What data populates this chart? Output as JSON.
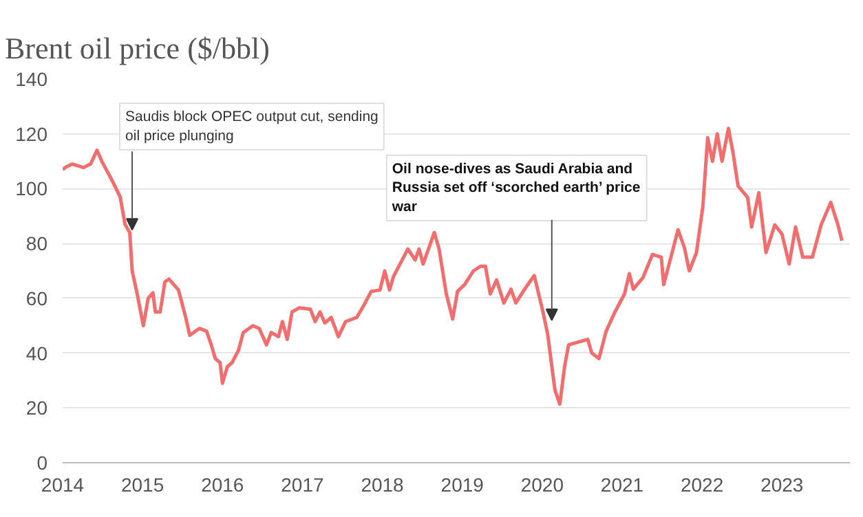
{
  "chart_data": {
    "type": "line",
    "title": "Brent oil price ($/bbl)",
    "x": [
      2014.0,
      2014.05,
      2014.12,
      2014.26,
      2014.35,
      2014.43,
      2014.49,
      2014.61,
      2014.72,
      2014.78,
      2014.84,
      2014.87,
      2014.93,
      2015.01,
      2015.07,
      2015.13,
      2015.16,
      2015.22,
      2015.28,
      2015.33,
      2015.45,
      2015.54,
      2015.59,
      2015.71,
      2015.8,
      2015.86,
      2015.91,
      2015.97,
      2016.0,
      2016.06,
      2016.12,
      2016.2,
      2016.26,
      2016.38,
      2016.46,
      2016.55,
      2016.61,
      2016.7,
      2016.75,
      2016.81,
      2016.87,
      2016.96,
      2017.1,
      2017.16,
      2017.22,
      2017.28,
      2017.36,
      2017.45,
      2017.54,
      2017.68,
      2017.77,
      2017.86,
      2017.97,
      2018.03,
      2018.09,
      2018.14,
      2018.23,
      2018.32,
      2018.41,
      2018.46,
      2018.51,
      2018.59,
      2018.65,
      2018.71,
      2018.8,
      2018.88,
      2018.94,
      2019.03,
      2019.14,
      2019.23,
      2019.29,
      2019.35,
      2019.43,
      2019.52,
      2019.61,
      2019.67,
      2019.78,
      2019.9,
      2020.01,
      2020.07,
      2020.13,
      2020.16,
      2020.22,
      2020.28,
      2020.33,
      2020.45,
      2020.57,
      2020.62,
      2020.71,
      2020.8,
      2020.91,
      2021.03,
      2021.09,
      2021.14,
      2021.26,
      2021.38,
      2021.49,
      2021.52,
      2021.61,
      2021.7,
      2021.78,
      2021.84,
      2021.93,
      2022.01,
      2022.07,
      2022.13,
      2022.19,
      2022.25,
      2022.33,
      2022.39,
      2022.45,
      2022.57,
      2022.62,
      2022.71,
      2022.8,
      2022.91,
      2023.0,
      2023.09,
      2023.17,
      2023.26,
      2023.38,
      2023.49,
      2023.61,
      2023.7,
      2023.75
    ],
    "series": [
      {
        "color": "#f26d6d",
        "values": [
          107,
          108,
          109,
          107.7,
          109,
          114,
          110,
          103.5,
          97,
          87,
          84,
          70,
          62,
          50,
          60,
          62,
          55,
          55,
          66,
          67,
          63,
          53,
          46.5,
          49,
          48,
          43,
          38,
          36.5,
          29,
          35,
          36.5,
          41,
          47.5,
          50,
          49,
          43,
          47.5,
          46,
          51.5,
          45,
          55,
          56.5,
          56,
          51.5,
          55,
          51,
          53,
          46,
          51.5,
          53,
          57.5,
          62.5,
          63,
          70,
          63,
          68,
          73,
          78,
          74,
          78,
          72.5,
          79,
          84,
          78,
          61.6,
          52.4,
          62.5,
          65,
          70,
          71.7,
          71.7,
          61.6,
          66.7,
          58.3,
          63.3,
          58.3,
          63.3,
          68.3,
          55,
          46.6,
          33,
          26.5,
          21.4,
          35,
          43,
          44,
          45,
          40,
          38,
          48,
          55,
          61.6,
          69,
          63.3,
          67.5,
          76,
          75,
          65,
          75,
          85,
          78.4,
          70,
          76.7,
          93.5,
          118.6,
          110,
          120,
          110,
          122,
          112.7,
          101,
          96.8,
          86,
          98.5,
          76.7,
          86.8,
          83.4,
          72.5,
          86,
          75,
          75,
          86.8,
          95,
          86.8,
          81
        ]
      }
    ],
    "xlim": [
      2014,
      2023.85
    ],
    "xticks": [
      2014,
      2015,
      2016,
      2017,
      2018,
      2019,
      2020,
      2021,
      2022,
      2023
    ],
    "ylim": [
      0,
      140
    ],
    "yticks": [
      0,
      20,
      40,
      60,
      80,
      100,
      120,
      140
    ],
    "grid": "y",
    "annotations": [
      {
        "text": "Saudis block OPEC output cut, sending\noil price plunging",
        "x": 2014.87,
        "y": 85
      },
      {
        "text": "Oil nose-dives as Saudi Arabia and\nRussia set off ‘scorched earth’ price\nwar",
        "x": 2020.12,
        "y": 52
      }
    ]
  }
}
